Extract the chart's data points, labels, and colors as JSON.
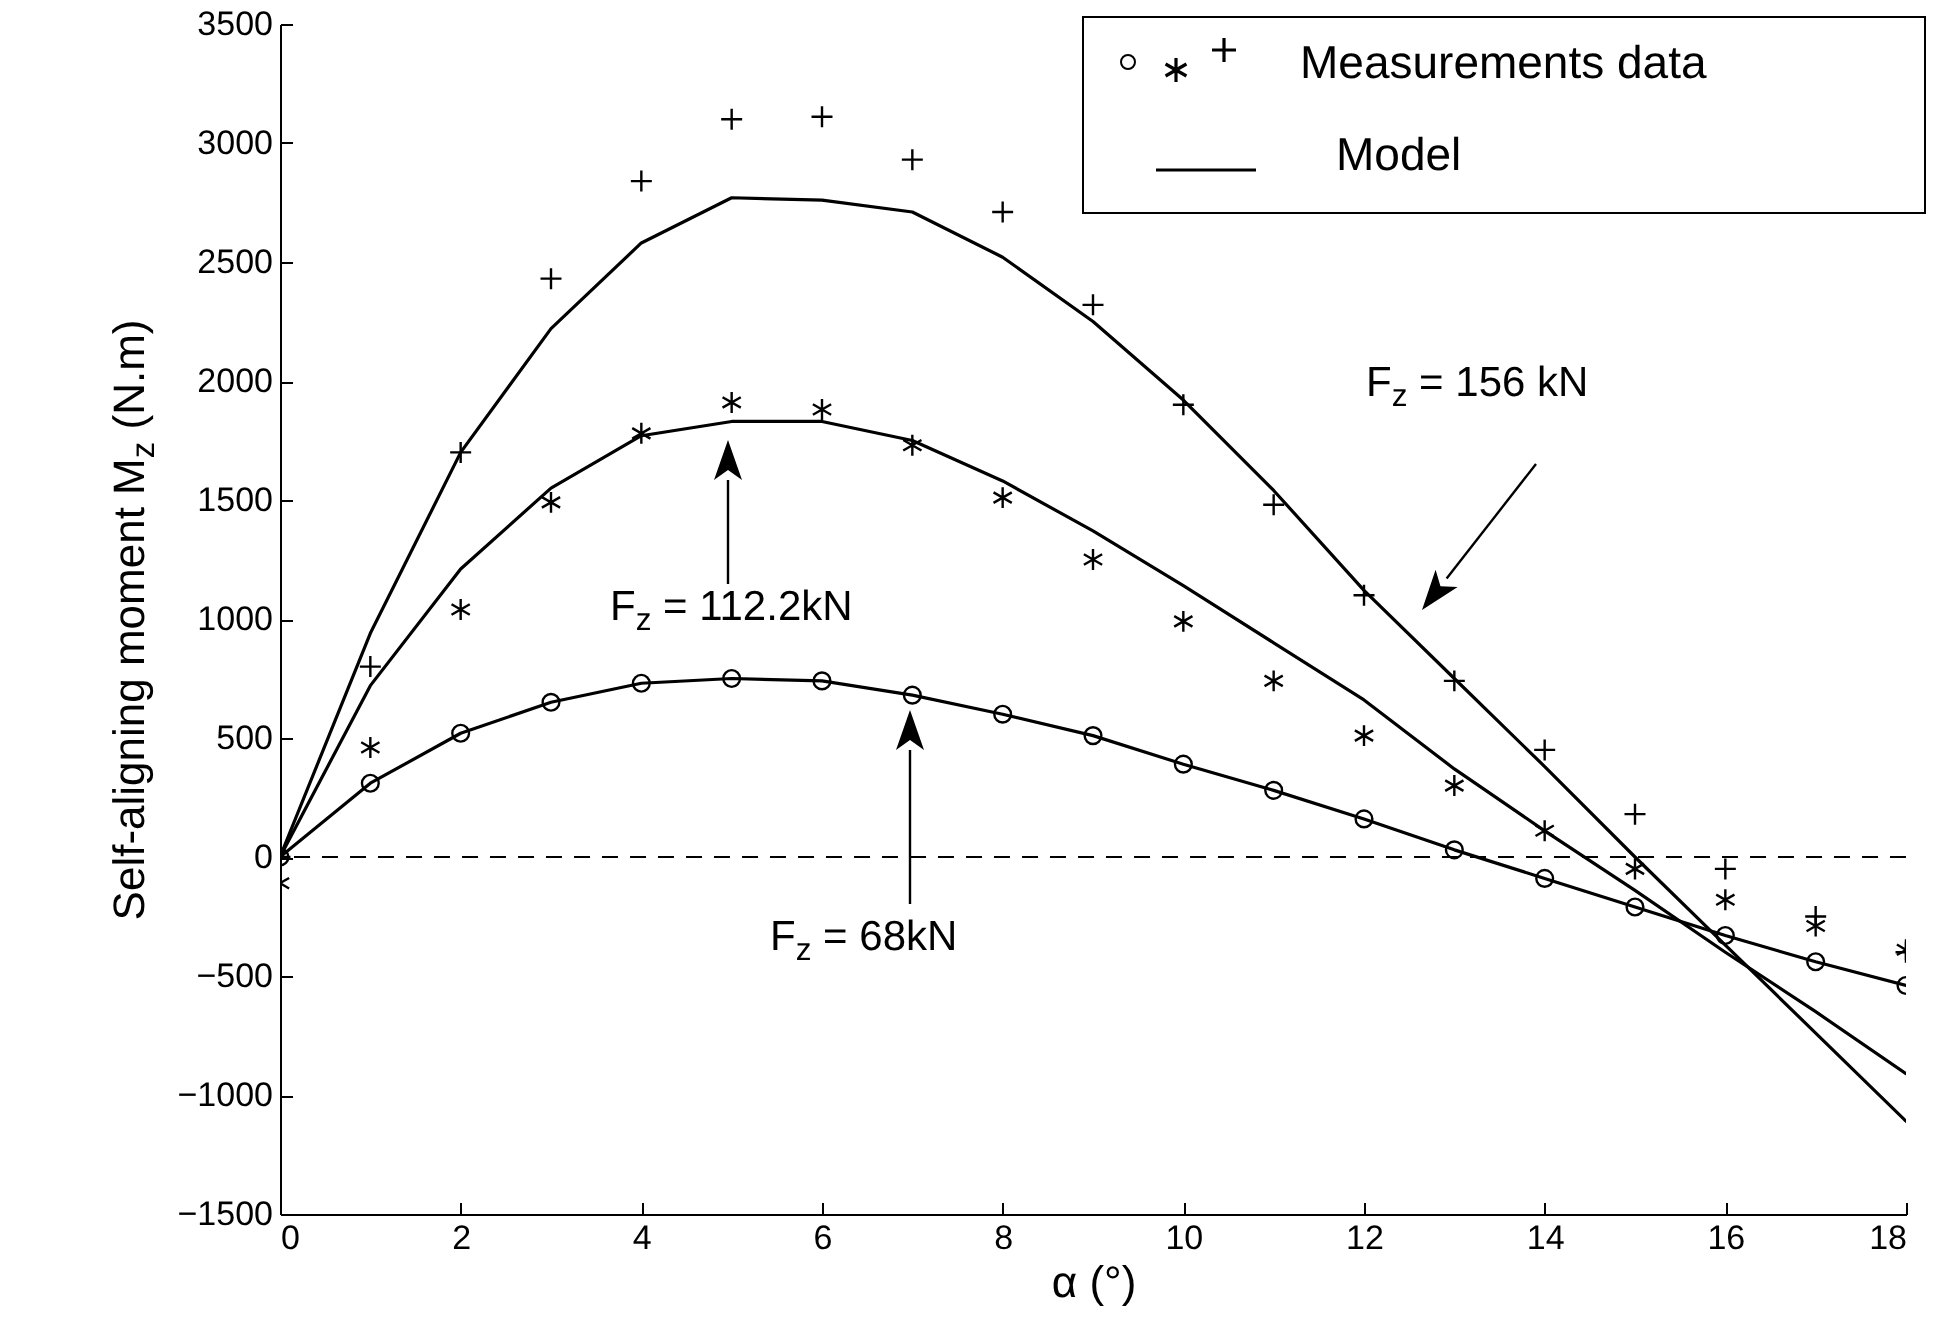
{
  "chart_data": {
    "type": "scatter",
    "xlabel": "α   (°)",
    "ylabel": "Self-aligning moment  M$_{z}$  (N.m)",
    "x": [
      0,
      1,
      2,
      3,
      4,
      5,
      6,
      7,
      8,
      9,
      10,
      11,
      12,
      13,
      14,
      15,
      16,
      17,
      18
    ],
    "xlim": [
      0,
      18
    ],
    "xticks": [
      0,
      2,
      4,
      6,
      8,
      10,
      12,
      14,
      16,
      18
    ],
    "ylim": [
      -1500,
      3500
    ],
    "yticks": [
      -1500,
      -1000,
      -500,
      0,
      500,
      1000,
      1500,
      2000,
      2500,
      3000,
      3500
    ],
    "grid": false,
    "legend": "top right",
    "series": [
      {
        "name": "Measurements data",
        "marker": "circle",
        "color": "#000000",
        "values": [
          0,
          310,
          520,
          650,
          730,
          750,
          740,
          680,
          600,
          510,
          390,
          280,
          160,
          30,
          -90,
          -210,
          -330,
          -440,
          -540
        ]
      },
      {
        "color": "#000000",
        "values": [
          -110,
          460,
          1040,
          1490,
          1780,
          1910,
          1880,
          1730,
          1510,
          1250,
          990,
          740,
          510,
          300,
          110,
          -50,
          -180,
          -290,
          -390
        ]
      },
      {
        "marker": "cross",
        "color": "#000000",
        "values": [
          0,
          800,
          1700,
          2430,
          2840,
          3100,
          3110,
          2930,
          2710,
          2320,
          1900,
          1480,
          1100,
          740,
          450,
          180,
          -50,
          -250,
          -400
        ]
      },
      {
        "name": "Model",
        "type": "line",
        "marker": "none",
        "line_style": "solid",
        "color": "#000000",
        "values": [
          0,
          310,
          520,
          650,
          730,
          750,
          740,
          680,
          600,
          510,
          390,
          280,
          160,
          30,
          -90,
          -210,
          -330,
          -440,
          -540
        ]
      },
      {
        "type": "line",
        "marker": "none",
        "line_style": "solid",
        "color": "#000000",
        "values": [
          0,
          720,
          1210,
          1550,
          1770,
          1830,
          1830,
          1750,
          1580,
          1370,
          1140,
          900,
          660,
          370,
          110,
          -140,
          -400,
          -650,
          -910
        ]
      },
      {
        "type": "line",
        "marker": "none",
        "line_style": "solid",
        "color": "#000000",
        "values": [
          0,
          940,
          1700,
          2220,
          2580,
          2770,
          2760,
          2710,
          2520,
          2250,
          1920,
          1540,
          1120,
          750,
          380,
          0,
          -370,
          -740,
          -1110
        ]
      }
    ],
    "ref_lines": [
      {
        "axis": "y",
        "value": 0,
        "line_style": "dashed",
        "color": "#000000"
      }
    ],
    "annotations": [
      "F$_{z}$ = 156 kN",
      "F$_{z}$ = 112.2kN",
      "F$_{z}$ = 68kN"
    ]
  }
}
